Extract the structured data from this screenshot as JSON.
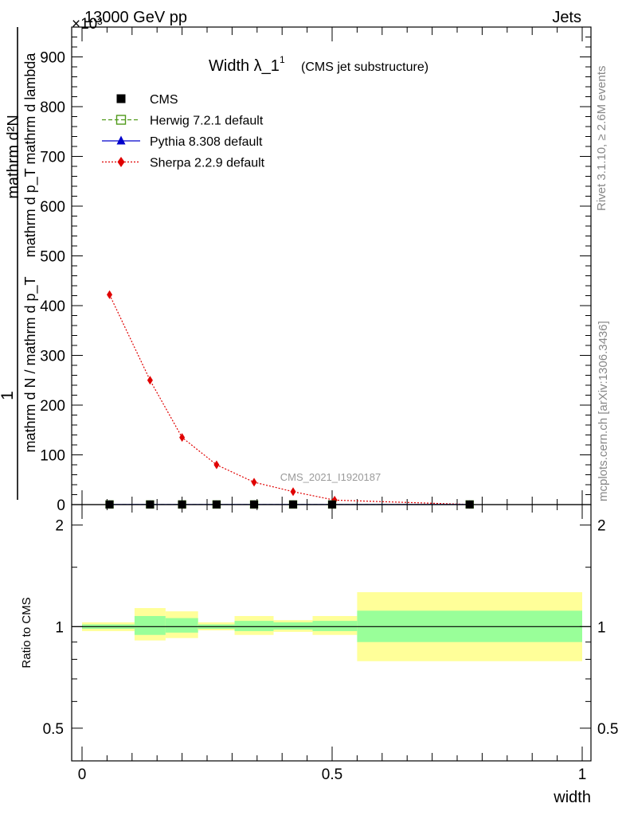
{
  "header": {
    "energy_label": "13000 GeV pp",
    "process_label": "Jets",
    "exponent_label": "×10³",
    "rivet_label": "Rivet 3.1.10, ≥ 2.6M events",
    "mcplots_label": "mcplots.cern.ch [arXiv:1306.3436]",
    "watermark": "CMS_2021_I1920187"
  },
  "chart_data": [
    {
      "type": "line",
      "title": "Width λ_1",
      "title_sup": "1",
      "subtitle": "(CMS jet substructure)",
      "xlabel": "",
      "ylabel": "1 / (mathrm d N / mathrm d p_T) · mathrm d²N / (mathrm d p_T mathrm d lambda)",
      "ylabel_numerator": "mathrm d²N",
      "ylabel_denominator_main": "mathrm d N / mathrm d p_T",
      "ylabel_denominator_tail": "mathrm d p_T mathrm d lambda",
      "ylabel_one": "1",
      "xlim": [
        0,
        1
      ],
      "ylim": [
        0,
        960
      ],
      "y_scale_factor": 1000,
      "y_ticks": [
        0,
        100,
        200,
        300,
        400,
        500,
        600,
        700,
        800,
        900
      ],
      "y_tick_labels": [
        "0",
        "100",
        "200",
        "300",
        "400",
        "500",
        "600",
        "700",
        "800",
        "900"
      ],
      "legend_position": "top-left",
      "legend": [
        {
          "name": "CMS",
          "marker": "square-filled",
          "color": "#000000",
          "line": "none"
        },
        {
          "name": "Herwig 7.2.1 default",
          "marker": "square-open",
          "color": "#4f9a1a",
          "line": "dashed"
        },
        {
          "name": "Pythia 8.308 default",
          "marker": "triangle",
          "color": "#0000cc",
          "line": "solid"
        },
        {
          "name": "Sherpa 2.2.9 default",
          "marker": "diamond",
          "color": "#e00000",
          "line": "dotted"
        }
      ],
      "series": [
        {
          "name": "CMS",
          "x": [
            0.055,
            0.136,
            0.2,
            0.269,
            0.344,
            0.422,
            0.5,
            0.775
          ],
          "values": [
            0.3,
            0.3,
            0.3,
            0.3,
            0.3,
            0.3,
            0.3,
            0.3
          ]
        },
        {
          "name": "Herwig 7.2.1 default",
          "x": [
            0.055,
            0.136,
            0.2,
            0.269,
            0.344,
            0.422,
            0.5,
            0.775
          ],
          "values": [
            0.3,
            0.3,
            0.3,
            0.3,
            0.3,
            0.3,
            0.3,
            0.3
          ]
        },
        {
          "name": "Pythia 8.308 default",
          "x": [
            0.055,
            0.136,
            0.2,
            0.269,
            0.344,
            0.422,
            0.5,
            0.775
          ],
          "values": [
            0.3,
            0.3,
            0.3,
            0.3,
            0.3,
            0.3,
            0.3,
            0.3
          ]
        },
        {
          "name": "Sherpa 2.2.9 default",
          "x": [
            0.055,
            0.136,
            0.2,
            0.269,
            0.344,
            0.422,
            0.505,
            0.775
          ],
          "values": [
            422,
            250,
            135,
            80,
            45,
            26,
            9,
            0.3
          ]
        }
      ]
    },
    {
      "type": "area",
      "title": "",
      "xlabel": "width",
      "ylabel": "Ratio to CMS",
      "xlim": [
        0,
        1
      ],
      "ylim": [
        0.4,
        2.3
      ],
      "y_scale": "log",
      "y_ticks": [
        0.5,
        1,
        2
      ],
      "y_tick_labels": [
        "0.5",
        "1",
        "2"
      ],
      "x_ticks": [
        0,
        0.5,
        1
      ],
      "x_tick_labels": [
        "0",
        "0.5",
        "1"
      ],
      "reference_line": 1,
      "bands": [
        {
          "x0": 0.0,
          "x1": 0.105,
          "inner": [
            0.985,
            1.015
          ],
          "outer": [
            0.97,
            1.03
          ]
        },
        {
          "x0": 0.105,
          "x1": 0.167,
          "inner": [
            0.945,
            1.075
          ],
          "outer": [
            0.91,
            1.135
          ]
        },
        {
          "x0": 0.167,
          "x1": 0.232,
          "inner": [
            0.96,
            1.06
          ],
          "outer": [
            0.925,
            1.11
          ]
        },
        {
          "x0": 0.232,
          "x1": 0.305,
          "inner": [
            0.985,
            1.015
          ],
          "outer": [
            0.975,
            1.03
          ]
        },
        {
          "x0": 0.305,
          "x1": 0.383,
          "inner": [
            0.97,
            1.04
          ],
          "outer": [
            0.945,
            1.075
          ]
        },
        {
          "x0": 0.383,
          "x1": 0.461,
          "inner": [
            0.98,
            1.03
          ],
          "outer": [
            0.965,
            1.045
          ]
        },
        {
          "x0": 0.461,
          "x1": 0.55,
          "inner": [
            0.97,
            1.04
          ],
          "outer": [
            0.945,
            1.075
          ]
        },
        {
          "x0": 0.55,
          "x1": 1.0,
          "inner": [
            0.9,
            1.115
          ],
          "outer": [
            0.79,
            1.265
          ]
        }
      ]
    }
  ]
}
